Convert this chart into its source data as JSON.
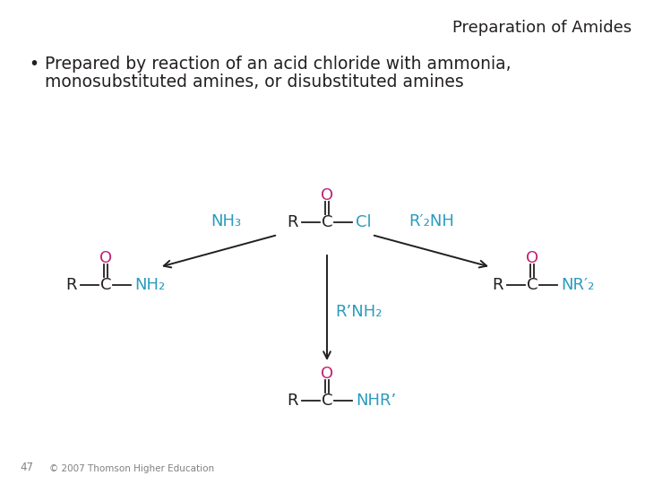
{
  "title": "Preparation of Amides",
  "bullet_line1": "Prepared by reaction of an acid chloride with ammonia,",
  "bullet_line2": "monosubstituted amines, or disubstituted amines",
  "footer_num": "47",
  "footer_text": "© 2007 Thomson Higher Education",
  "bg_color": "#ffffff",
  "title_color": "#231f20",
  "bullet_color": "#231f20",
  "magenta": "#be2178",
  "cyan": "#2b9bbf",
  "black": "#231f20",
  "gray": "#808080",
  "title_fontsize": 13,
  "bullet_fontsize": 13.5,
  "chem_fontsize": 13,
  "footer_fontsize": 7.5
}
